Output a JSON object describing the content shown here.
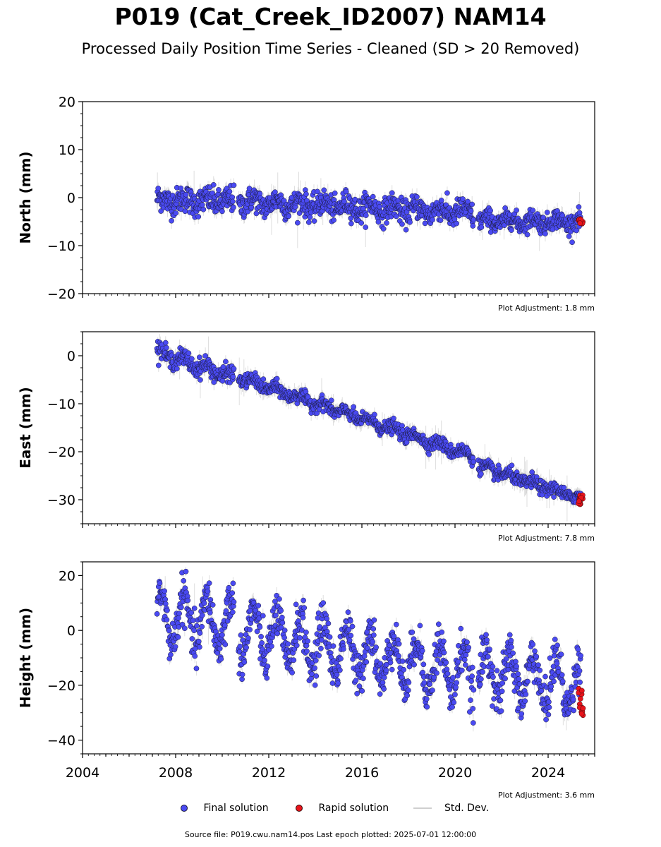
{
  "header": {
    "title": "P019 (Cat_Creek_ID2007) NAM14",
    "subtitle": "Processed Daily Position Time Series - Cleaned (SD > 20 Removed)"
  },
  "legend": {
    "final": "Final solution",
    "rapid": "Rapid solution",
    "std": "Std. Dev."
  },
  "footer": {
    "text": "Source file: P019.cwu.nam14.pos  Last epoch plotted: 2025-07-01 12:00:00"
  },
  "colors": {
    "final": "#4a4af2",
    "rapid": "#e8141b",
    "std": "#b5b5b5",
    "edge": "#1a1a3a"
  },
  "chart_data": [
    {
      "type": "scatter",
      "name": "north",
      "ylabel": "North (mm)",
      "ylim": [
        -20,
        20
      ],
      "yticks": [
        20,
        10,
        0,
        -10,
        -20
      ],
      "xlim": [
        2004,
        2026
      ],
      "adjustment": "Plot Adjustment: 1.8 mm",
      "segments": [
        {
          "x": [
            2007.2,
            2010.5
          ],
          "y": [
            -0.5,
            -0.8
          ],
          "noise": 1.4,
          "amp": 0.6
        },
        {
          "x": [
            2010.7,
            2020.8
          ],
          "y": [
            -0.8,
            -3.2
          ],
          "noise": 1.3,
          "amp": 0.9
        },
        {
          "x": [
            2021.0,
            2025.4
          ],
          "y": [
            -4.8,
            -5.0
          ],
          "noise": 1.0,
          "amp": 0.7
        }
      ],
      "rapid": {
        "x": [
          2025.3,
          2025.5
        ],
        "y": [
          -5.5,
          -4.0
        ]
      }
    },
    {
      "type": "scatter",
      "name": "east",
      "ylabel": "East (mm)",
      "ylim": [
        -35,
        5
      ],
      "yticks": [
        0,
        -10,
        -20,
        -30
      ],
      "xlim": [
        2004,
        2026
      ],
      "adjustment": "Plot Adjustment: 7.8 mm",
      "segments": [
        {
          "x": [
            2007.2,
            2010.5
          ],
          "y": [
            0.8,
            -4.5
          ],
          "noise": 0.9,
          "amp": 0.8
        },
        {
          "x": [
            2010.7,
            2020.8
          ],
          "y": [
            -4.5,
            -21.0
          ],
          "noise": 0.7,
          "amp": 0.6
        },
        {
          "x": [
            2021.0,
            2025.4
          ],
          "y": [
            -23.0,
            -29.8
          ],
          "noise": 0.7,
          "amp": 0.5
        }
      ],
      "rapid": {
        "x": [
          2025.3,
          2025.5
        ],
        "y": [
          -31.0,
          -29.0
        ]
      }
    },
    {
      "type": "scatter",
      "name": "height",
      "ylabel": "Height (mm)",
      "ylim": [
        -45,
        25
      ],
      "yticks": [
        20,
        0,
        -20,
        -40
      ],
      "xlim": [
        2004,
        2026
      ],
      "xticks": [
        "2004",
        "2008",
        "2012",
        "2016",
        "2020",
        "2024"
      ],
      "adjustment": "Plot Adjustment: 3.6 mm",
      "segments": [
        {
          "x": [
            2007.2,
            2010.5
          ],
          "y": [
            5.0,
            2.0
          ],
          "noise": 4.0,
          "amp": 9.0
        },
        {
          "x": [
            2010.7,
            2020.8
          ],
          "y": [
            0.0,
            -16.0
          ],
          "noise": 4.0,
          "amp": 9.0
        },
        {
          "x": [
            2021.0,
            2025.4
          ],
          "y": [
            -15.0,
            -20.0
          ],
          "noise": 4.0,
          "amp": 9.0
        }
      ],
      "rapid": {
        "x": [
          2025.3,
          2025.5
        ],
        "y": [
          -32.0,
          -21.0
        ]
      }
    }
  ]
}
